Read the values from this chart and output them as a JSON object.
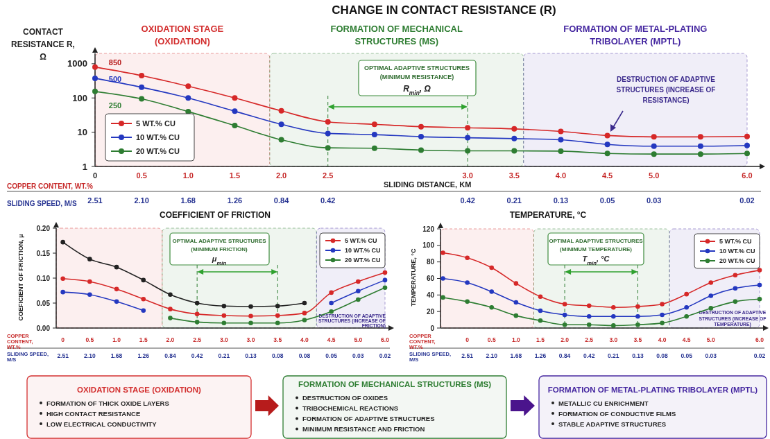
{
  "chart_data": [
    {
      "type": "line",
      "title": "CHANGE IN CONTACT RESISTANCE (R)",
      "ylabel": "CONTACT RESISTANCE R, Ω",
      "xlabel": "SLIDING DISTANCE, KM",
      "categories": [
        "0",
        "0.5",
        "1.0",
        "1.5",
        "2.0",
        "2.5",
        null,
        null,
        "3.0",
        "3.5",
        "4.0",
        "4.5",
        "5.0",
        null,
        "6.0"
      ],
      "log": true,
      "ylim": [
        1,
        2000
      ],
      "yticks": [
        1,
        10,
        100,
        1000
      ],
      "marker": "circle",
      "legend": "bottom left",
      "series": [
        {
          "name": "5 WT.% CU",
          "color": "#d62828",
          "values": [
            800,
            450,
            220,
            100,
            42,
            20,
            17,
            14.5,
            13.5,
            12.5,
            10.5,
            8,
            7.3,
            7.3,
            7.5
          ]
        },
        {
          "name": "10 WT.% CU",
          "color": "#2438c0",
          "values": [
            375,
            205,
            100,
            41,
            17,
            9.2,
            8.5,
            7.4,
            6.9,
            6.5,
            6,
            4.4,
            3.9,
            3.9,
            4.1
          ]
        },
        {
          "name": "20 WT.% CU",
          "color": "#2e7d32",
          "values": [
            155,
            94,
            40,
            15.6,
            6,
            3.5,
            3.4,
            3,
            2.85,
            2.85,
            2.8,
            2.4,
            2.3,
            2.3,
            2.4
          ]
        }
      ],
      "ref_lines": [
        {
          "axis": "x",
          "value": "2.5",
          "color": "#2e7d32",
          "line_style": "dashed"
        },
        {
          "axis": "x",
          "value": "3.0",
          "color": "#2e7d32",
          "line_style": "dashed"
        }
      ],
      "annotations": [
        "OXIDATION STAGE (OXIDATION)",
        "FORMATION OF MECHANICAL STRUCTURES (MS)",
        "FORMATION OF METAL-PLATING TRIBOLAYER (MPTL)",
        "COPPER CONTENT, WT.%",
        "850",
        "500",
        "250",
        "OPTIMAL ADAPTIVE STRUCTURES (MINIMUM RESISTANCE)",
        "R$_{min}$, Ω",
        "DESTRUCTION OF ADAPTIVE STRUCTURES (INCREASE OF RESISTANCE)",
        "SLIDING SPEED, M/S",
        "2.51",
        "2.10",
        "1.68",
        "1.26",
        "0.84",
        "0.42",
        "0.42",
        "0.21",
        "0.13",
        "0.05",
        "0.03",
        "0.02"
      ]
    },
    {
      "type": "line",
      "title": "COEFFICIENT OF FRICTION",
      "ylabel": "COEFICIENT OF FRICTION, μ",
      "xlabel": "COPPER CONTENT, WT.%",
      "categories": [
        "0",
        "0.5",
        "1.0",
        "1.5",
        "2.0",
        "2.5",
        "3.0",
        "3.0",
        "3.5",
        "4.0",
        "4.5",
        "5.0",
        "6.0"
      ],
      "ylim": [
        0,
        0.2
      ],
      "yticks": [
        {
          "value": 0,
          "label": "0.00"
        },
        {
          "value": 0.05,
          "label": "0.05"
        },
        {
          "value": 0.1,
          "label": "0.10"
        },
        {
          "value": 0.15,
          "label": "0.15"
        },
        {
          "value": 0.2,
          "label": "0.20"
        }
      ],
      "marker": "circle",
      "legend": "top right",
      "series": [
        {
          "color": "#222222",
          "values": [
            0.172,
            0.138,
            0.122,
            0.096,
            0.067,
            0.05,
            0.044,
            0.043,
            0.044,
            0.05,
            null,
            null,
            null
          ]
        },
        {
          "name": "5 WT.% CU",
          "color": "#d62828",
          "values": [
            0.099,
            0.093,
            0.078,
            0.058,
            0.038,
            0.028,
            0.025,
            0.024,
            0.025,
            0.03,
            0.071,
            0.093,
            0.111
          ]
        },
        {
          "name": "10 WT.% CU",
          "color": "#2438c0",
          "values": [
            0.072,
            0.067,
            0.053,
            0.035,
            null,
            null,
            null,
            null,
            null,
            null,
            0.05,
            0.074,
            0.096
          ]
        },
        {
          "name": "20 WT.% CU",
          "color": "#2e7d32",
          "values": [
            null,
            null,
            null,
            null,
            0.02,
            0.012,
            0.01,
            0.01,
            0.01,
            0.016,
            0.033,
            0.057,
            0.081
          ]
        }
      ],
      "ref_lines": [
        {
          "axis": "x",
          "value": "2.5",
          "color": "#2e7d32",
          "line_style": "dashed"
        },
        {
          "axis": "x",
          "value": "3.5",
          "color": "#2e7d32",
          "line_style": "dashed"
        }
      ],
      "annotations": [
        "OPTIMAL ADAPTIVE STRUCTURES (MINIMUM FRICTION)",
        "μ$_{min}$",
        "DESTRUCTION OF ADAPTIVE STRUCTURES (INCREASE OF FRICTION)",
        "SLIDING SPEED, M/S",
        "2.51",
        "2.10",
        "1.68",
        "1.26",
        "0.84",
        "0.42",
        "0.21",
        "0.13",
        "0.08",
        "0.08",
        "0.05",
        "0.03",
        "0.02"
      ]
    },
    {
      "type": "line",
      "title": "TEMPERATURE, °C",
      "ylabel": "TEMPERATURE, °C",
      "xlabel": "COPPER CONTENT, WT.%",
      "categories": [
        null,
        "0",
        "0.5",
        "1.0",
        "1.5",
        "2.0",
        "2.5",
        "3.0",
        "3.5",
        "4.0",
        "4.5",
        "5.0",
        null,
        "6.0"
      ],
      "ylim": [
        0,
        120
      ],
      "yticks": [
        0,
        20,
        40,
        60,
        80,
        100,
        120
      ],
      "marker": "circle",
      "legend": "top right",
      "series": [
        {
          "name": "5 WT.% CU",
          "color": "#d62828",
          "values": [
            91,
            85,
            73,
            54,
            38,
            29,
            27,
            25,
            26,
            29,
            41,
            55,
            64,
            70
          ]
        },
        {
          "name": "10 WT.% CU",
          "color": "#2438c0",
          "values": [
            60,
            55,
            44,
            31,
            21,
            16,
            14,
            14,
            14,
            16,
            25,
            39,
            48,
            52
          ]
        },
        {
          "name": "20 WT.% CU",
          "color": "#2e7d32",
          "values": [
            37,
            32,
            25,
            15,
            9,
            4,
            4,
            3,
            4,
            6,
            14,
            24,
            32,
            35
          ]
        }
      ],
      "ref_lines": [
        {
          "axis": "x",
          "value": "2.0",
          "color": "#2e7d32",
          "line_style": "dashed"
        },
        {
          "axis": "x",
          "value": "3.5",
          "color": "#2e7d32",
          "line_style": "dashed"
        }
      ],
      "annotations": [
        "OPTIMAL ADAPTIVE STRUCTURES (MINIMUM TEMPERATURE)",
        "T$_{min}$, °C",
        "DESTRUCTION OF ADAPTIVE STRUCTURES (INCREASE OF TEMPERATURE)",
        "SLIDING SPEED, M/S",
        "2.51",
        "2.10",
        "1.68",
        "1.26",
        "0.84",
        "0.42",
        "0.21",
        "0.13",
        "0.08",
        "0.05",
        "0.03",
        "0.02"
      ]
    },
    {
      "type": "other",
      "annotations": [
        "OXIDATION STAGE (OXIDATION)",
        "FORMATION OF THICK OXIDE LAYERS",
        "HIGH CONTACT RESISTANCE",
        "LOW ELECTRICAL CONDUCTIVITY",
        "FORMATION OF MECHANICAL STRUCTURES (MS)",
        "DESTRUCTION OF OXIDES",
        "TRIBOCHEMICAL REACTIONS",
        "FORMATION OF ADAPTIVE STRUCTURES",
        "MINIMUM RESISTANCE AND FRICTION",
        "FORMATION OF METAL-PLATING TRIBOLAYER (MPTL)",
        "METALLIC CU ENRICHMENT",
        "FORMATION OF CONDUCTIVE FILMS",
        "STABLE ADAPTIVE STRUCTURES"
      ]
    }
  ]
}
